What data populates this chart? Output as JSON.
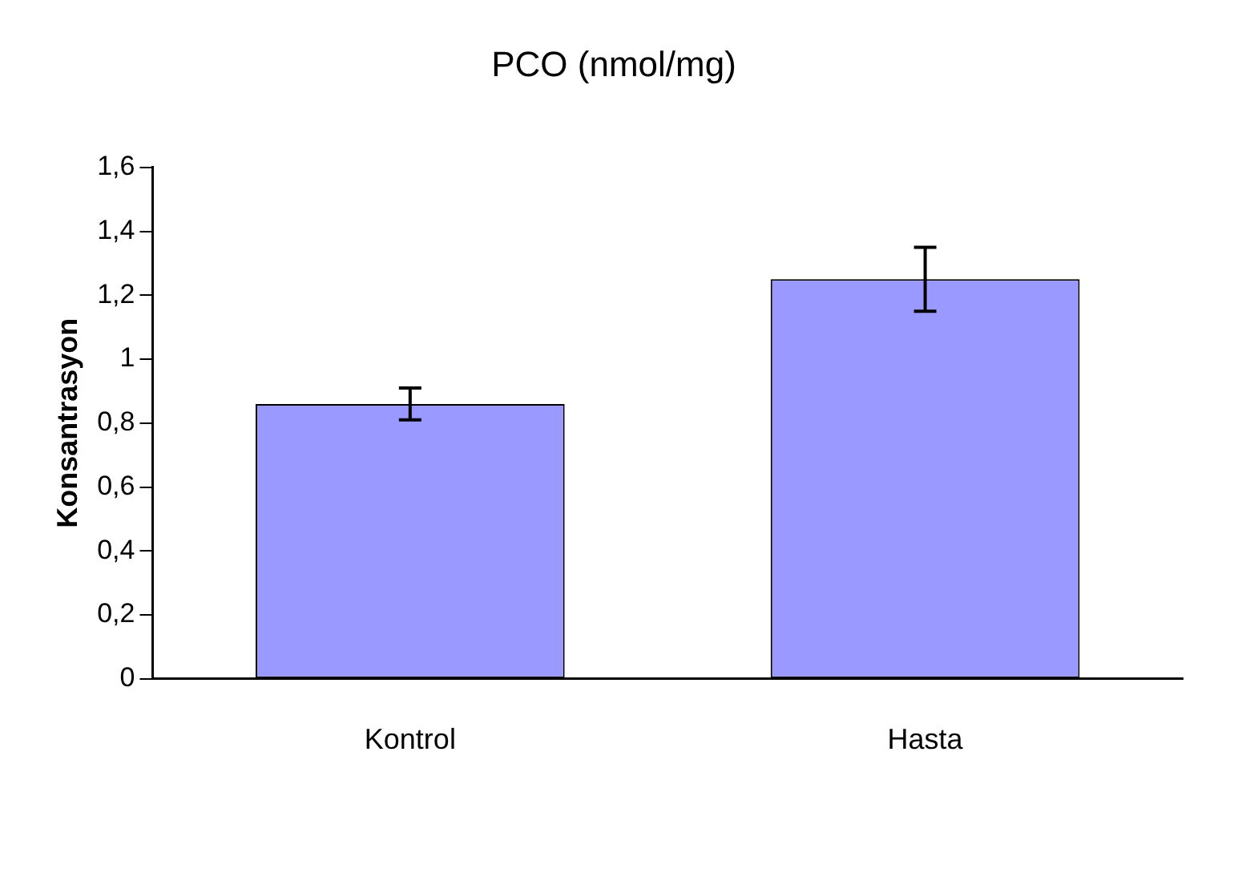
{
  "chart_data": {
    "type": "bar",
    "title": "PCO (nmol/mg)",
    "ylabel": "Konsantrasyon",
    "categories": [
      "Kontrol",
      "Hasta"
    ],
    "values": [
      0.86,
      1.25
    ],
    "errors": [
      0.05,
      0.1
    ],
    "color": "#9999ff",
    "ylim": [
      0,
      1.6
    ],
    "yticks": [
      0,
      {
        "value": 0.2,
        "label": "0,2"
      },
      {
        "value": 0.4,
        "label": "0,4"
      },
      {
        "value": 0.6,
        "label": "0,6"
      },
      {
        "value": 0.8,
        "label": "0,8"
      },
      1,
      {
        "value": 1.2,
        "label": "1,2"
      },
      {
        "value": 1.4,
        "label": "1,4"
      },
      {
        "value": 1.6,
        "label": "1,6"
      }
    ],
    "grid": false,
    "legend": false
  }
}
